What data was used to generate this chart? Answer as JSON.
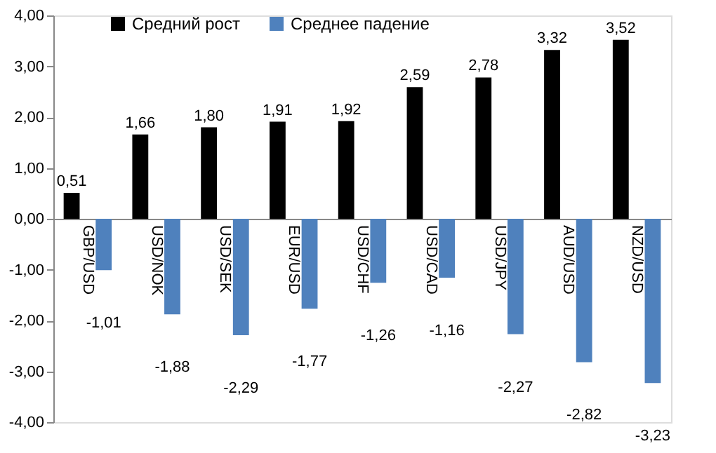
{
  "chart_data": {
    "type": "bar",
    "categories": [
      "GBP/USD",
      "USD/NOK",
      "USD/SEK",
      "EUR/USD",
      "USD/CHF",
      "USD/CAD",
      "USD/JPY",
      "AUD/USD",
      "NZD/USD"
    ],
    "series": [
      {
        "name": "Средний рост",
        "color": "#000000",
        "values": [
          0.51,
          1.66,
          1.8,
          1.91,
          1.92,
          2.59,
          2.78,
          3.32,
          3.52
        ],
        "value_labels": [
          "0,51",
          "1,66",
          "1,80",
          "1,91",
          "1,92",
          "2,59",
          "2,78",
          "3,32",
          "3,52"
        ]
      },
      {
        "name": "Среднее падение",
        "color": "#4f81bd",
        "values": [
          -1.01,
          -1.88,
          -2.29,
          -1.77,
          -1.26,
          -1.16,
          -2.27,
          -2.82,
          -3.23
        ],
        "value_labels": [
          "-1,01",
          "-1,88",
          "-2,29",
          "-1,77",
          "-1,26",
          "-1,16",
          "-2,27",
          "-2,82",
          "-3,23"
        ]
      }
    ],
    "ylim": [
      -4,
      4
    ],
    "yticks": [
      {
        "value": -4,
        "label": "-4,00"
      },
      {
        "value": -3,
        "label": "-3,00"
      },
      {
        "value": -2,
        "label": "-2,00"
      },
      {
        "value": -1,
        "label": "-1,00"
      },
      {
        "value": 0,
        "label": "0,00"
      },
      {
        "value": 1,
        "label": "1,00"
      },
      {
        "value": 2,
        "label": "2,00"
      },
      {
        "value": 3,
        "label": "3,00"
      },
      {
        "value": 4,
        "label": "4,00"
      }
    ],
    "legend": "top left",
    "grid": false
  }
}
